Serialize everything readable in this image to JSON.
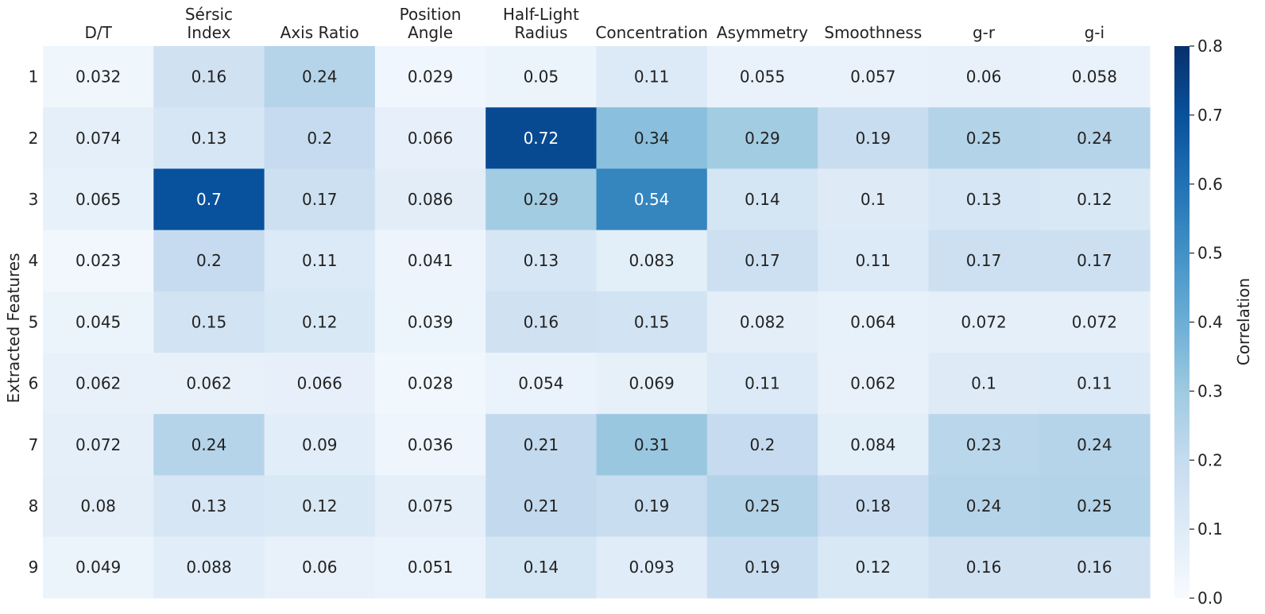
{
  "chart_data": {
    "type": "heatmap",
    "title": "",
    "xlabel": "",
    "ylabel": "Extracted Features",
    "columns": [
      [
        "D/T"
      ],
      [
        "Sérsic",
        "Index"
      ],
      [
        "Axis Ratio"
      ],
      [
        "Position",
        "Angle"
      ],
      [
        "Half-Light",
        "Radius"
      ],
      [
        "Concentration"
      ],
      [
        "Asymmetry"
      ],
      [
        "Smoothness"
      ],
      [
        "g-r"
      ],
      [
        "g-i"
      ]
    ],
    "rows": [
      "1",
      "2",
      "3",
      "4",
      "5",
      "6",
      "7",
      "8",
      "9"
    ],
    "values": [
      [
        "0.032",
        "0.16",
        "0.24",
        "0.029",
        "0.05",
        "0.11",
        "0.055",
        "0.057",
        "0.06",
        "0.058"
      ],
      [
        "0.074",
        "0.13",
        "0.2",
        "0.066",
        "0.72",
        "0.34",
        "0.29",
        "0.19",
        "0.25",
        "0.24"
      ],
      [
        "0.065",
        "0.7",
        "0.17",
        "0.086",
        "0.29",
        "0.54",
        "0.14",
        "0.1",
        "0.13",
        "0.12"
      ],
      [
        "0.023",
        "0.2",
        "0.11",
        "0.041",
        "0.13",
        "0.083",
        "0.17",
        "0.11",
        "0.17",
        "0.17"
      ],
      [
        "0.045",
        "0.15",
        "0.12",
        "0.039",
        "0.16",
        "0.15",
        "0.082",
        "0.064",
        "0.072",
        "0.072"
      ],
      [
        "0.062",
        "0.062",
        "0.066",
        "0.028",
        "0.054",
        "0.069",
        "0.11",
        "0.062",
        "0.1",
        "0.11"
      ],
      [
        "0.072",
        "0.24",
        "0.09",
        "0.036",
        "0.21",
        "0.31",
        "0.2",
        "0.084",
        "0.23",
        "0.24"
      ],
      [
        "0.08",
        "0.13",
        "0.12",
        "0.075",
        "0.21",
        "0.19",
        "0.25",
        "0.18",
        "0.24",
        "0.25"
      ],
      [
        "0.049",
        "0.088",
        "0.06",
        "0.051",
        "0.14",
        "0.093",
        "0.19",
        "0.12",
        "0.16",
        "0.16"
      ]
    ],
    "colorbar": {
      "label": "Correlation",
      "range": [
        0,
        0.8
      ],
      "ticks": [
        "0.0",
        "0.1",
        "0.2",
        "0.3",
        "0.4",
        "0.5",
        "0.6",
        "0.7",
        "0.8"
      ]
    },
    "colormap": [
      "#f7fbff",
      "#deebf7",
      "#c6dbef",
      "#9ecae1",
      "#6baed6",
      "#4292c6",
      "#2171b5",
      "#08519c",
      "#08306b"
    ]
  }
}
